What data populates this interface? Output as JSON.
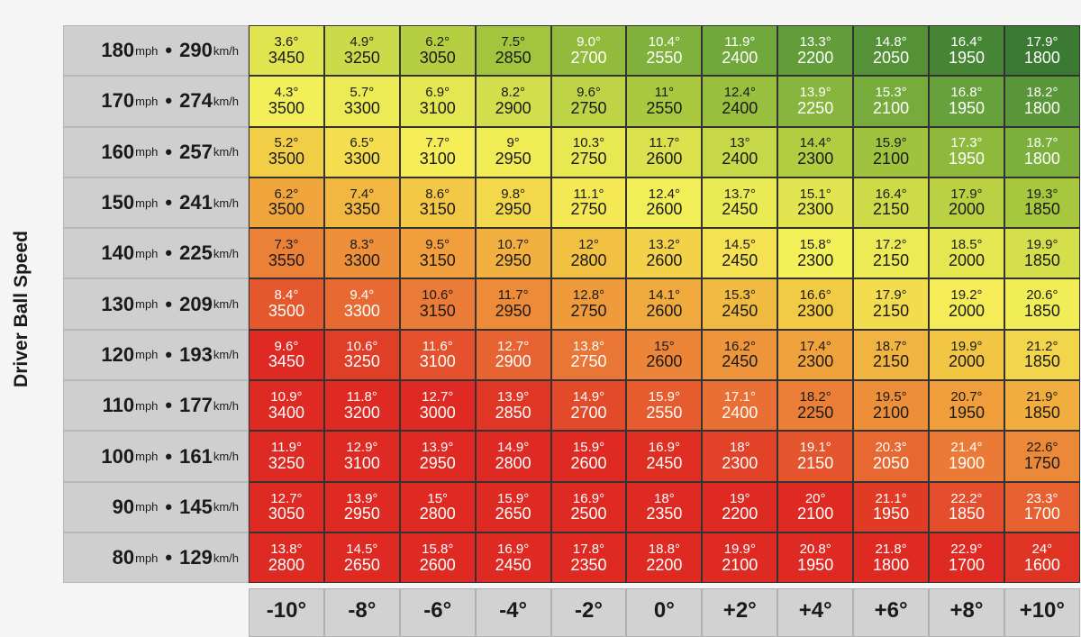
{
  "axis_title": "Driver Ball Speed",
  "colors": {
    "header_bg": "#cfcfcf",
    "text_light": "#ffffff",
    "text_dark": "#1a1a1a",
    "gradient_top": "#3a7a32",
    "gradient_middle": "#f5f05a",
    "gradient_bottom": "#de2a22"
  },
  "chart_data": {
    "type": "table",
    "title": "",
    "row_axis_label": "Driver Ball Speed",
    "rows": [
      {
        "mph": "180",
        "kmh": "290",
        "mph_unit": "mph",
        "kmh_unit": "km/h",
        "dot": "•",
        "cells": [
          [
            "3.6°",
            "3450"
          ],
          [
            "4.9°",
            "3250"
          ],
          [
            "6.2°",
            "3050"
          ],
          [
            "7.5°",
            "2850"
          ],
          [
            "9.0°",
            "2700"
          ],
          [
            "10.4°",
            "2550"
          ],
          [
            "11.9°",
            "2400"
          ],
          [
            "13.3°",
            "2200"
          ],
          [
            "14.8°",
            "2050"
          ],
          [
            "16.4°",
            "1950"
          ],
          [
            "17.9°",
            "1800"
          ]
        ]
      },
      {
        "mph": "170",
        "kmh": "274",
        "mph_unit": "mph",
        "kmh_unit": "km/h",
        "dot": "•",
        "cells": [
          [
            "4.3°",
            "3500"
          ],
          [
            "5.7°",
            "3300"
          ],
          [
            "6.9°",
            "3100"
          ],
          [
            "8.2°",
            "2900"
          ],
          [
            "9.6°",
            "2750"
          ],
          [
            "11°",
            "2550"
          ],
          [
            "12.4°",
            "2400"
          ],
          [
            "13.9°",
            "2250"
          ],
          [
            "15.3°",
            "2100"
          ],
          [
            "16.8°",
            "1950"
          ],
          [
            "18.2°",
            "1800"
          ]
        ]
      },
      {
        "mph": "160",
        "kmh": "257",
        "mph_unit": "mph",
        "kmh_unit": "km/h",
        "dot": "•",
        "cells": [
          [
            "5.2°",
            "3500"
          ],
          [
            "6.5°",
            "3300"
          ],
          [
            "7.7°",
            "3100"
          ],
          [
            "9°",
            "2950"
          ],
          [
            "10.3°",
            "2750"
          ],
          [
            "11.7°",
            "2600"
          ],
          [
            "13°",
            "2400"
          ],
          [
            "14.4°",
            "2300"
          ],
          [
            "15.9°",
            "2100"
          ],
          [
            "17.3°",
            "1950"
          ],
          [
            "18.7°",
            "1800"
          ]
        ]
      },
      {
        "mph": "150",
        "kmh": "241",
        "mph_unit": "mph",
        "kmh_unit": "km/h",
        "dot": "•",
        "cells": [
          [
            "6.2°",
            "3500"
          ],
          [
            "7.4°",
            "3350"
          ],
          [
            "8.6°",
            "3150"
          ],
          [
            "9.8°",
            "2950"
          ],
          [
            "11.1°",
            "2750"
          ],
          [
            "12.4°",
            "2600"
          ],
          [
            "13.7°",
            "2450"
          ],
          [
            "15.1°",
            "2300"
          ],
          [
            "16.4°",
            "2150"
          ],
          [
            "17.9°",
            "2000"
          ],
          [
            "19.3°",
            "1850"
          ]
        ]
      },
      {
        "mph": "140",
        "kmh": "225",
        "mph_unit": "mph",
        "kmh_unit": "km/h",
        "dot": "•",
        "cells": [
          [
            "7.3°",
            "3550"
          ],
          [
            "8.3°",
            "3300"
          ],
          [
            "9.5°",
            "3150"
          ],
          [
            "10.7°",
            "2950"
          ],
          [
            "12°",
            "2800"
          ],
          [
            "13.2°",
            "2600"
          ],
          [
            "14.5°",
            "2450"
          ],
          [
            "15.8°",
            "2300"
          ],
          [
            "17.2°",
            "2150"
          ],
          [
            "18.5°",
            "2000"
          ],
          [
            "19.9°",
            "1850"
          ]
        ]
      },
      {
        "mph": "130",
        "kmh": "209",
        "mph_unit": "mph",
        "kmh_unit": "km/h",
        "dot": "•",
        "cells": [
          [
            "8.4°",
            "3500"
          ],
          [
            "9.4°",
            "3300"
          ],
          [
            "10.6°",
            "3150"
          ],
          [
            "11.7°",
            "2950"
          ],
          [
            "12.8°",
            "2750"
          ],
          [
            "14.1°",
            "2600"
          ],
          [
            "15.3°",
            "2450"
          ],
          [
            "16.6°",
            "2300"
          ],
          [
            "17.9°",
            "2150"
          ],
          [
            "19.2°",
            "2000"
          ],
          [
            "20.6°",
            "1850"
          ]
        ]
      },
      {
        "mph": "120",
        "kmh": "193",
        "mph_unit": "mph",
        "kmh_unit": "km/h",
        "dot": "•",
        "cells": [
          [
            "9.6°",
            "3450"
          ],
          [
            "10.6°",
            "3250"
          ],
          [
            "11.6°",
            "3100"
          ],
          [
            "12.7°",
            "2900"
          ],
          [
            "13.8°",
            "2750"
          ],
          [
            "15°",
            "2600"
          ],
          [
            "16.2°",
            "2450"
          ],
          [
            "17.4°",
            "2300"
          ],
          [
            "18.7°",
            "2150"
          ],
          [
            "19.9°",
            "2000"
          ],
          [
            "21.2°",
            "1850"
          ]
        ]
      },
      {
        "mph": "110",
        "kmh": "177",
        "mph_unit": "mph",
        "kmh_unit": "km/h",
        "dot": "•",
        "cells": [
          [
            "10.9°",
            "3400"
          ],
          [
            "11.8°",
            "3200"
          ],
          [
            "12.7°",
            "3000"
          ],
          [
            "13.9°",
            "2850"
          ],
          [
            "14.9°",
            "2700"
          ],
          [
            "15.9°",
            "2550"
          ],
          [
            "17.1°",
            "2400"
          ],
          [
            "18.2°",
            "2250"
          ],
          [
            "19.5°",
            "2100"
          ],
          [
            "20.7°",
            "1950"
          ],
          [
            "21.9°",
            "1850"
          ]
        ]
      },
      {
        "mph": "100",
        "kmh": "161",
        "mph_unit": "mph",
        "kmh_unit": "km/h",
        "dot": "•",
        "cells": [
          [
            "11.9°",
            "3250"
          ],
          [
            "12.9°",
            "3100"
          ],
          [
            "13.9°",
            "2950"
          ],
          [
            "14.9°",
            "2800"
          ],
          [
            "15.9°",
            "2600"
          ],
          [
            "16.9°",
            "2450"
          ],
          [
            "18°",
            "2300"
          ],
          [
            "19.1°",
            "2150"
          ],
          [
            "20.3°",
            "2050"
          ],
          [
            "21.4°",
            "1900"
          ],
          [
            "22.6°",
            "1750"
          ]
        ]
      },
      {
        "mph": "90",
        "kmh": "145",
        "mph_unit": "mph",
        "kmh_unit": "km/h",
        "dot": "•",
        "cells": [
          [
            "12.7°",
            "3050"
          ],
          [
            "13.9°",
            "2950"
          ],
          [
            "15°",
            "2800"
          ],
          [
            "15.9°",
            "2650"
          ],
          [
            "16.9°",
            "2500"
          ],
          [
            "18°",
            "2350"
          ],
          [
            "19°",
            "2200"
          ],
          [
            "20°",
            "2100"
          ],
          [
            "21.1°",
            "1950"
          ],
          [
            "22.2°",
            "1850"
          ],
          [
            "23.3°",
            "1700"
          ]
        ]
      },
      {
        "mph": "80",
        "kmh": "129",
        "mph_unit": "mph",
        "kmh_unit": "km/h",
        "dot": "•",
        "cells": [
          [
            "13.8°",
            "2800"
          ],
          [
            "14.5°",
            "2650"
          ],
          [
            "15.8°",
            "2600"
          ],
          [
            "16.9°",
            "2450"
          ],
          [
            "17.8°",
            "2350"
          ],
          [
            "18.8°",
            "2200"
          ],
          [
            "19.9°",
            "2100"
          ],
          [
            "20.8°",
            "1950"
          ],
          [
            "21.8°",
            "1800"
          ],
          [
            "22.9°",
            "1700"
          ],
          [
            "24°",
            "1600"
          ]
        ]
      }
    ],
    "column_headers": [
      "-10°",
      "-8°",
      "-6°",
      "-4°",
      "-2°",
      "0°",
      "+2°",
      "+4°",
      "+6°",
      "+8°",
      "+10°"
    ]
  }
}
